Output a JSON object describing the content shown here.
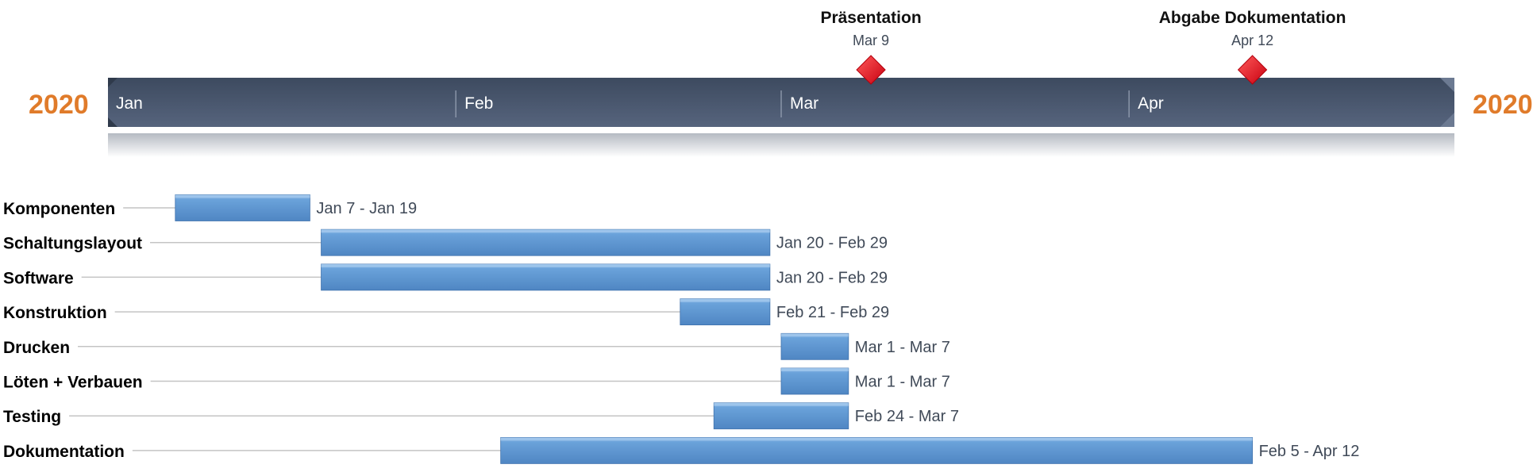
{
  "chart_data": {
    "type": "gantt",
    "year": "2020",
    "axis": {
      "start": "2020-01-01",
      "end": "2020-04-30"
    },
    "months": [
      {
        "label": "Jan",
        "date": "2020-01-01"
      },
      {
        "label": "Feb",
        "date": "2020-02-01"
      },
      {
        "label": "Mar",
        "date": "2020-03-01"
      },
      {
        "label": "Apr",
        "date": "2020-04-01"
      }
    ],
    "milestones": [
      {
        "name": "Präsentation",
        "date": "2020-03-09",
        "date_label": "Mar 9"
      },
      {
        "name": "Abgabe Dokumentation",
        "date": "2020-04-12",
        "date_label": "Apr 12"
      }
    ],
    "tasks": [
      {
        "name": "Komponenten",
        "start": "2020-01-07",
        "end": "2020-01-19",
        "range_label": "Jan 7 - Jan 19"
      },
      {
        "name": "Schaltungslayout",
        "start": "2020-01-20",
        "end": "2020-02-29",
        "range_label": "Jan 20 - Feb 29"
      },
      {
        "name": "Software",
        "start": "2020-01-20",
        "end": "2020-02-29",
        "range_label": "Jan 20 - Feb 29"
      },
      {
        "name": "Konstruktion",
        "start": "2020-02-21",
        "end": "2020-02-29",
        "range_label": "Feb 21 - Feb 29"
      },
      {
        "name": "Drucken",
        "start": "2020-03-01",
        "end": "2020-03-07",
        "range_label": "Mar 1 - Mar 7"
      },
      {
        "name": "Löten + Verbauen",
        "start": "2020-03-01",
        "end": "2020-03-07",
        "range_label": "Mar 1 - Mar 7"
      },
      {
        "name": "Testing",
        "start": "2020-02-24",
        "end": "2020-03-07",
        "range_label": "Feb 24 - Mar 7"
      },
      {
        "name": "Dokumentation",
        "start": "2020-02-05",
        "end": "2020-04-12",
        "range_label": "Feb 5 - Apr 12"
      }
    ],
    "colors": {
      "year": "#e07b2a",
      "timeline_band": "#4a5870",
      "task_bar": "#5b93cf",
      "milestone": "#e5101a",
      "leader_line": "#c4c4c4"
    }
  }
}
